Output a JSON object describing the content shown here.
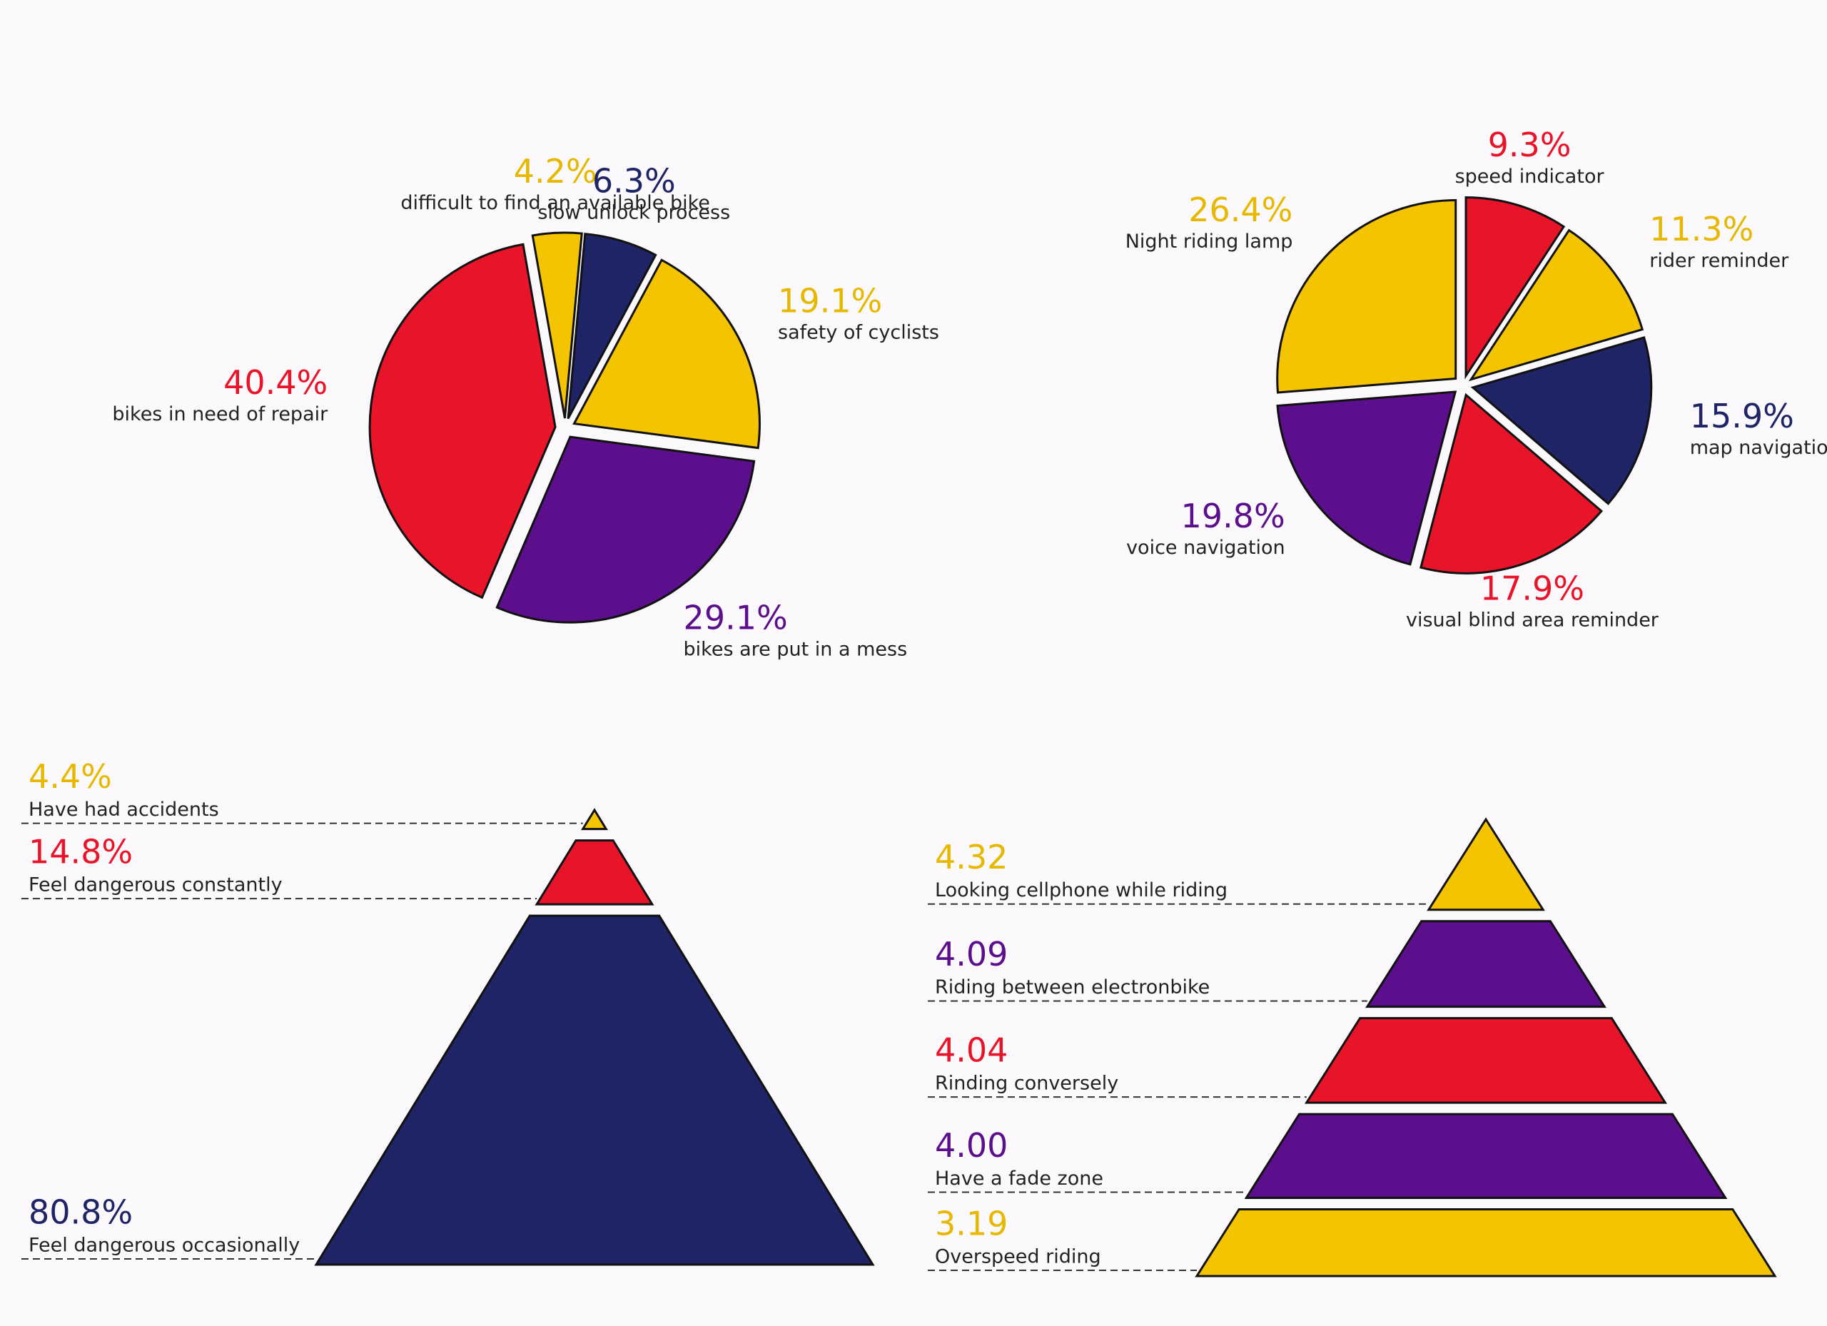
{
  "chart_data": [
    {
      "type": "pie",
      "categories": [
        "difficult to find an available bike",
        "slow unlock process",
        "safety of cyclists",
        "bikes are put in a mess",
        "bikes in need of repair"
      ],
      "values": [
        4.2,
        6.3,
        19.1,
        29.1,
        40.4
      ],
      "value_labels": [
        "4.2%",
        "6.3%",
        "19.1%",
        "29.1%",
        "40.4%"
      ],
      "colors": [
        "#f5c400",
        "#1f2466",
        "#f5c400",
        "#5c0f8c",
        "#e8142a"
      ]
    },
    {
      "type": "pie",
      "categories": [
        "speed indicator",
        "rider reminder",
        "map navigation",
        "visual blind area reminder",
        "voice navigation",
        "Night riding lamp"
      ],
      "values": [
        9.3,
        11.3,
        15.9,
        17.9,
        19.8,
        26.4
      ],
      "value_labels": [
        "9.3%",
        "11.3%",
        "15.9%",
        "17.9%",
        "19.8%",
        "26.4%"
      ],
      "colors": [
        "#e8142a",
        "#f5c400",
        "#1f2466",
        "#e8142a",
        "#5c0f8c",
        "#f5c400"
      ]
    },
    {
      "type": "pyramid",
      "categories": [
        "Have had accidents",
        "Feel dangerous constantly",
        "Feel dangerous occasionally"
      ],
      "values": [
        4.4,
        14.8,
        80.8
      ],
      "value_labels": [
        "4.4%",
        "14.8%",
        "80.8%"
      ],
      "colors": [
        "#f5c400",
        "#e8142a",
        "#1f2466"
      ]
    },
    {
      "type": "pyramid",
      "categories": [
        "Looking cellphone while riding",
        "Riding between electronbike",
        "Rinding conversely",
        "Have a fade zone",
        "Overspeed riding"
      ],
      "values": [
        4.32,
        4.09,
        4.04,
        4,
        3.19
      ],
      "value_labels": [
        "4.32",
        "4.09",
        "4.04",
        "4.00",
        "3.19"
      ],
      "colors": [
        "#f5c400",
        "#5c0f8c",
        "#e8142a",
        "#5c0f8c",
        "#f5c400"
      ]
    }
  ]
}
